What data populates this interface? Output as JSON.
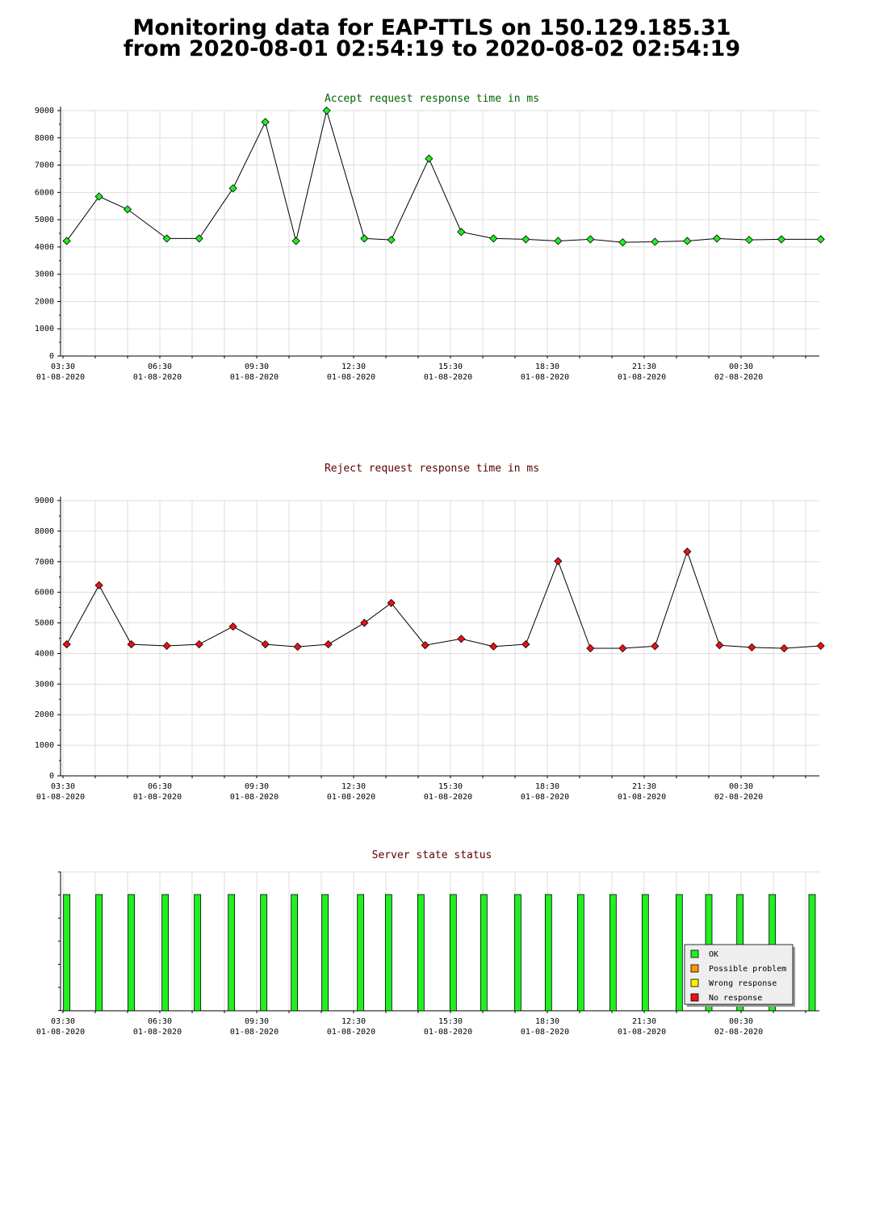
{
  "page": {
    "title_line1": "Monitoring data for EAP-TTLS on 150.129.185.31",
    "title_line2": "from 2020-08-01 02:54:19 to 2020-08-02 02:54:19"
  },
  "colors": {
    "accept_title": "#006400",
    "reject_title": "#5a0000",
    "status_title": "#5a0000",
    "accept_marker": "#22ee22",
    "reject_marker": "#ee1111",
    "ok": "#22ee22",
    "possible_problem": "#ff9900",
    "wrong_response": "#ffee00",
    "no_response": "#ee1111",
    "grid": "#dddddd"
  },
  "x_ticks": [
    {
      "time": "03:30",
      "date": "01-08-2020"
    },
    {
      "time": "06:30",
      "date": "01-08-2020"
    },
    {
      "time": "09:30",
      "date": "01-08-2020"
    },
    {
      "time": "12:30",
      "date": "01-08-2020"
    },
    {
      "time": "15:30",
      "date": "01-08-2020"
    },
    {
      "time": "18:30",
      "date": "01-08-2020"
    },
    {
      "time": "21:30",
      "date": "01-08-2020"
    },
    {
      "time": "00:30",
      "date": "02-08-2020"
    }
  ],
  "chart_data": [
    {
      "type": "line",
      "title": "Accept request response time in ms",
      "xlabel": "",
      "ylabel": "",
      "ylim": [
        0,
        9000
      ],
      "yticks": [
        0,
        1000,
        2000,
        3000,
        4000,
        5000,
        6000,
        7000,
        8000,
        9000
      ],
      "grid": true,
      "x": [
        "2020-08-01 03:37",
        "2020-08-01 04:37",
        "2020-08-01 05:30",
        "2020-08-01 06:43",
        "2020-08-01 07:43",
        "2020-08-01 08:46",
        "2020-08-01 09:46",
        "2020-08-01 10:43",
        "2020-08-01 11:40",
        "2020-08-01 12:50",
        "2020-08-01 13:40",
        "2020-08-01 14:50",
        "2020-08-01 15:50",
        "2020-08-01 16:50",
        "2020-08-01 17:50",
        "2020-08-01 18:50",
        "2020-08-01 19:50",
        "2020-08-01 20:50",
        "2020-08-01 21:50",
        "2020-08-01 22:50",
        "2020-08-01 23:45",
        "2020-08-02 00:45",
        "2020-08-02 01:45",
        "2020-08-02 02:58"
      ],
      "series": [
        {
          "values": [
            4220,
            5850,
            5380,
            4310,
            4310,
            6150,
            8580,
            4220,
            9000,
            4310,
            4260,
            7240,
            4550,
            4310,
            4280,
            4220,
            4280,
            4170,
            4190,
            4220,
            4310,
            4260,
            4280,
            4280
          ]
        }
      ]
    },
    {
      "type": "line",
      "title": "Reject request response time in ms",
      "xlabel": "",
      "ylabel": "",
      "ylim": [
        0,
        9000
      ],
      "yticks": [
        0,
        1000,
        2000,
        3000,
        4000,
        5000,
        6000,
        7000,
        8000,
        9000
      ],
      "grid": true,
      "x": [
        "2020-08-01 03:37",
        "2020-08-01 04:37",
        "2020-08-01 05:37",
        "2020-08-01 06:43",
        "2020-08-01 07:43",
        "2020-08-01 08:46",
        "2020-08-01 09:46",
        "2020-08-01 10:46",
        "2020-08-01 11:43",
        "2020-08-01 12:50",
        "2020-08-01 13:40",
        "2020-08-01 14:43",
        "2020-08-01 15:50",
        "2020-08-01 16:50",
        "2020-08-01 17:50",
        "2020-08-01 18:50",
        "2020-08-01 19:50",
        "2020-08-01 20:50",
        "2020-08-01 21:50",
        "2020-08-01 22:50",
        "2020-08-01 23:50",
        "2020-08-02 00:50",
        "2020-08-02 01:50",
        "2020-08-02 02:58"
      ],
      "series": [
        {
          "values": [
            4300,
            6230,
            4300,
            4250,
            4300,
            4880,
            4300,
            4220,
            4300,
            5000,
            5650,
            4270,
            4480,
            4230,
            4300,
            7020,
            4170,
            4170,
            4240,
            7330,
            4270,
            4200,
            4170,
            4250
          ]
        }
      ]
    },
    {
      "type": "bar",
      "title": "Server state status",
      "xlabel": "",
      "ylabel": "",
      "x": [
        "2020-08-01 03:37",
        "2020-08-01 04:37",
        "2020-08-01 05:37",
        "2020-08-01 06:40",
        "2020-08-01 07:40",
        "2020-08-01 08:43",
        "2020-08-01 09:43",
        "2020-08-01 10:40",
        "2020-08-01 11:37",
        "2020-08-01 12:43",
        "2020-08-01 13:35",
        "2020-08-01 14:35",
        "2020-08-01 15:35",
        "2020-08-01 16:32",
        "2020-08-01 17:35",
        "2020-08-01 18:32",
        "2020-08-01 19:32",
        "2020-08-01 20:32",
        "2020-08-01 21:32",
        "2020-08-01 22:35",
        "2020-08-01 23:30",
        "2020-08-02 00:28",
        "2020-08-02 01:28",
        "2020-08-02 02:42"
      ],
      "values": [
        "OK",
        "OK",
        "OK",
        "OK",
        "OK",
        "OK",
        "OK",
        "OK",
        "OK",
        "OK",
        "OK",
        "OK",
        "OK",
        "OK",
        "OK",
        "OK",
        "OK",
        "OK",
        "OK",
        "OK",
        "OK",
        "OK",
        "OK",
        "OK"
      ],
      "legend": {
        "placement": "bottom-right",
        "items": [
          {
            "label": "OK",
            "color": "#22ee22"
          },
          {
            "label": "Possible problem",
            "color": "#ff9900"
          },
          {
            "label": "Wrong response",
            "color": "#ffee00"
          },
          {
            "label": "No response",
            "color": "#ee1111"
          }
        ]
      }
    }
  ]
}
